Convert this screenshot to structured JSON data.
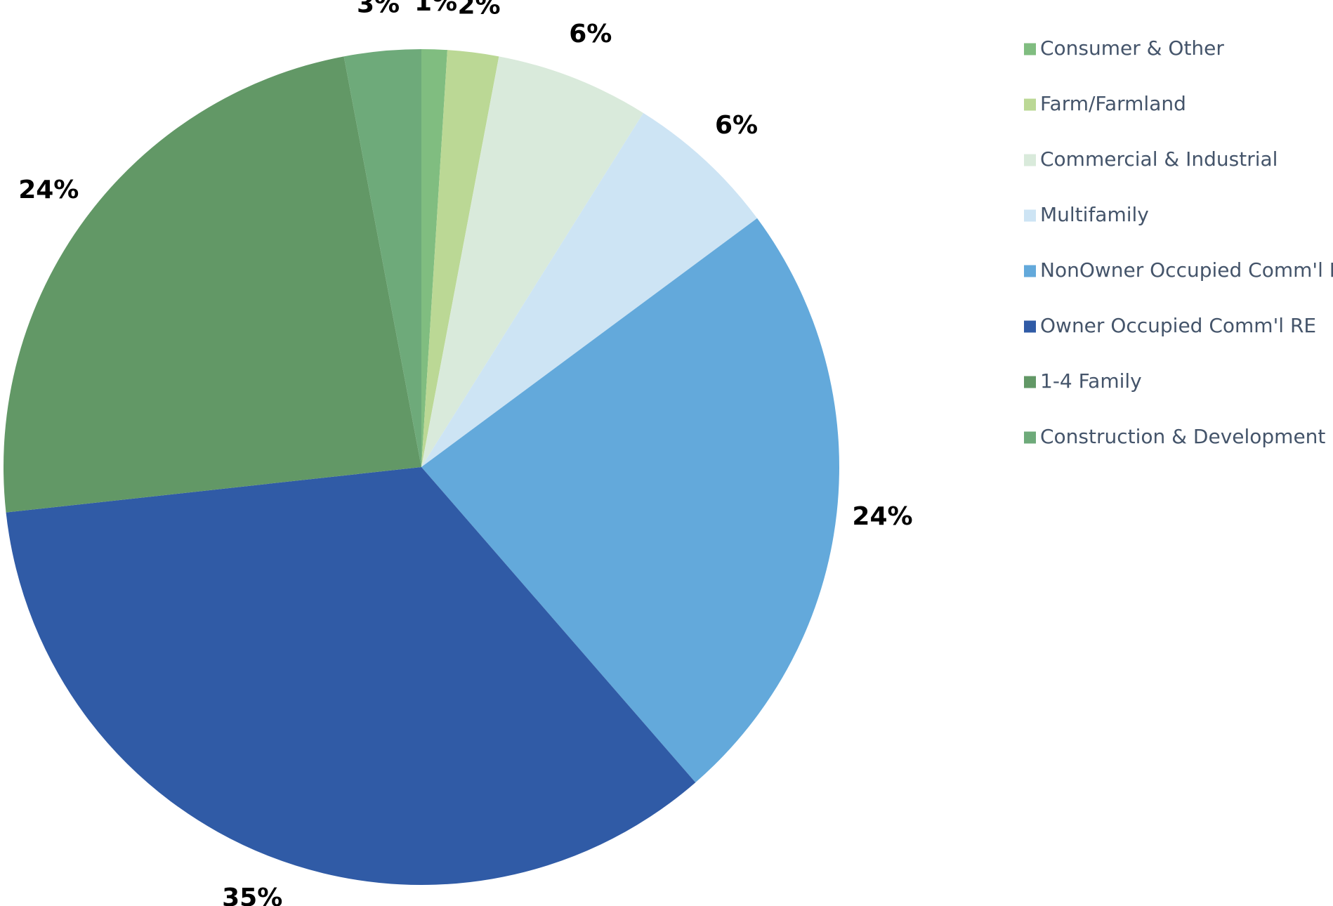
{
  "chart_data": {
    "type": "pie",
    "title": "",
    "start_angle_deg": 0,
    "direction": "clockwise",
    "legend_position": "right",
    "slices": [
      {
        "name": "Consumer & Other",
        "value": 1,
        "label": "1%",
        "color": "#80bd80"
      },
      {
        "name": "Farm/Farmland",
        "value": 2,
        "label": "2%",
        "color": "#bbd895"
      },
      {
        "name": "Commercial & Industrial",
        "value": 6,
        "label": "6%",
        "color": "#d9eadb"
      },
      {
        "name": "Multifamily",
        "value": 6,
        "label": "6%",
        "color": "#cde4f4"
      },
      {
        "name": "NonOwner Occupied Comm'l RE",
        "value": 24,
        "label": "24%",
        "color": "#63a9db"
      },
      {
        "name": "Owner Occupied Comm'l RE",
        "value": 35,
        "label": "35%",
        "color": "#305ba6"
      },
      {
        "name": "1-4 Family",
        "value": 24,
        "label": "24%",
        "color": "#629866"
      },
      {
        "name": "Construction & Development",
        "value": 3,
        "label": "3%",
        "color": "#6eaa7a"
      }
    ],
    "legend_order": [
      "Consumer & Other",
      "Farm/Farmland",
      "Commercial & Industrial",
      "Multifamily",
      "NonOwner Occupied Comm'l RE",
      "Owner Occupied Comm'l RE",
      "1-4 Family",
      "Construction & Development"
    ]
  }
}
